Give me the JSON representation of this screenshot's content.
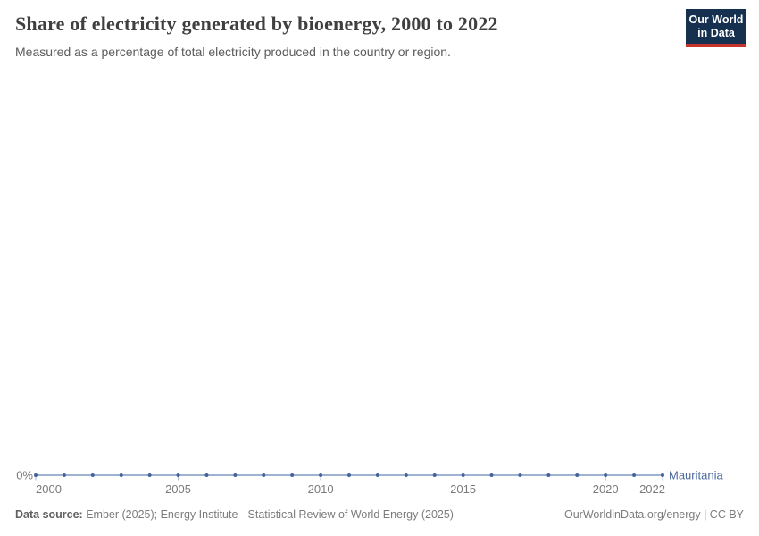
{
  "header": {
    "title": "Share of electricity generated by bioenergy, 2000 to 2022",
    "subtitle": "Measured as a percentage of total electricity produced in the country or region.",
    "logo": {
      "line1": "Our World",
      "line2": "in Data"
    }
  },
  "chart_data": {
    "type": "line",
    "title": "Share of electricity generated by bioenergy, 2000 to 2022",
    "xlabel": "",
    "ylabel": "",
    "unit": "%",
    "x": [
      2000,
      2001,
      2002,
      2003,
      2004,
      2005,
      2006,
      2007,
      2008,
      2009,
      2010,
      2011,
      2012,
      2013,
      2014,
      2015,
      2016,
      2017,
      2018,
      2019,
      2020,
      2021,
      2022
    ],
    "series": [
      {
        "name": "Mauritania",
        "values": [
          0,
          0,
          0,
          0,
          0,
          0,
          0,
          0,
          0,
          0,
          0,
          0,
          0,
          0,
          0,
          0,
          0,
          0,
          0,
          0,
          0,
          0,
          0
        ]
      }
    ],
    "x_ticks": [
      2000,
      2005,
      2010,
      2015,
      2020,
      2022
    ],
    "y_ticks": [
      "0%"
    ],
    "ylim": [
      0,
      0
    ],
    "grid": false,
    "legend_position": "end-of-line-label"
  },
  "colors": {
    "line": "#7e99c4",
    "marker": "#45639b",
    "entity_label": "#4c6a9c",
    "axis_text": "#7a7a7a",
    "tick_mark": "#a9b6ce",
    "logo_bg": "#16304f",
    "logo_red": "#c5352c"
  },
  "footer": {
    "datasource_label": "Data source:",
    "datasource_text": " Ember (2025); Energy Institute - Statistical Review of World Energy (2025)",
    "rights": "OurWorldinData.org/energy | CC BY"
  }
}
